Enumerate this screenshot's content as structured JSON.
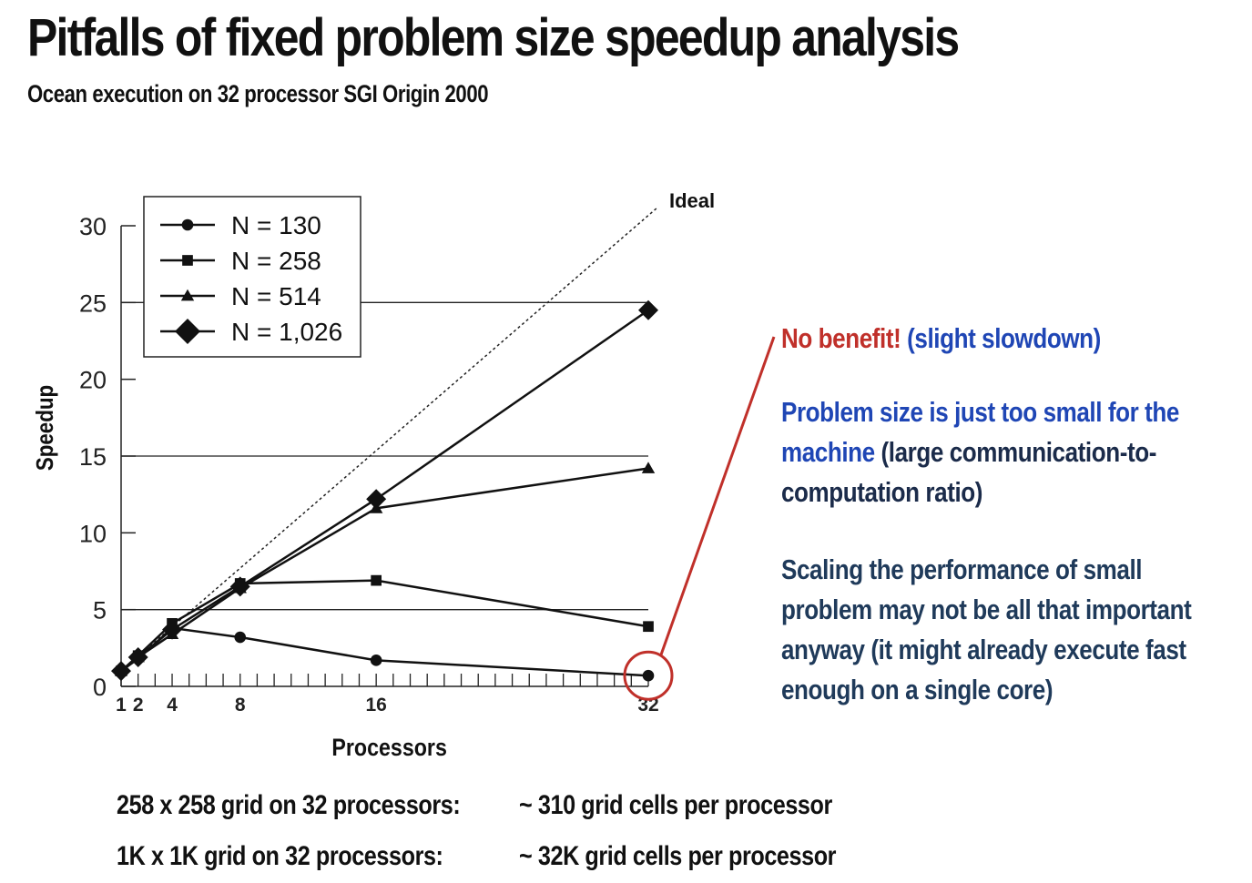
{
  "slide": {
    "title": "Pitfalls of fixed problem size speedup analysis",
    "subtitle": "Ocean execution on 32 processor SGI Origin 2000"
  },
  "chart_data": {
    "type": "line",
    "xlabel": "Processors",
    "ylabel": "Speedup",
    "xlim": [
      1,
      32
    ],
    "ylim": [
      0,
      30
    ],
    "x_ticks": [
      1,
      2,
      4,
      8,
      16,
      32
    ],
    "y_ticks": [
      0,
      5,
      10,
      15,
      20,
      25,
      30
    ],
    "grid": "horizontal at 5, 15, 25",
    "legend_position": "top-left",
    "ideal_label": "Ideal",
    "series": [
      {
        "name": "N = 130",
        "marker": "circle",
        "x": [
          1,
          2,
          4,
          8,
          16,
          32
        ],
        "values": [
          1.0,
          1.8,
          3.8,
          3.2,
          1.7,
          0.7
        ]
      },
      {
        "name": "N = 258",
        "marker": "square",
        "x": [
          1,
          2,
          4,
          8,
          16,
          32
        ],
        "values": [
          1.0,
          2.0,
          4.1,
          6.7,
          6.9,
          3.9
        ]
      },
      {
        "name": "N = 514",
        "marker": "triangle",
        "x": [
          1,
          2,
          4,
          8,
          16,
          32
        ],
        "values": [
          1.0,
          1.9,
          3.4,
          6.4,
          11.6,
          14.2
        ]
      },
      {
        "name": "N = 1,026",
        "marker": "diamond",
        "x": [
          1,
          2,
          4,
          8,
          16,
          32
        ],
        "values": [
          1.0,
          1.9,
          3.7,
          6.5,
          12.2,
          24.5
        ]
      }
    ],
    "highlight_color": "#c0302a"
  },
  "callouts": {
    "c1_red": "No benefit!",
    "c1_blue": "(slight slowdown)",
    "c2_line1": "Problem size is just too small for the",
    "c2_line2_blue": "machine",
    "c2_line2_rest": "(large communication-to-",
    "c2_line3": "computation ratio)",
    "c3_line1": "Scaling the performance of small",
    "c3_line2": "problem may not be all that important",
    "c3_line3": "anyway (it might already execute fast",
    "c3_line4": "enough on a single core)"
  },
  "grid_rows": [
    {
      "label": "258 x 258 grid on 32 processors:",
      "value": "~ 310 grid cells per processor"
    },
    {
      "label": "1K x 1K grid on 32 processors:",
      "value": "~ 32K grid cells per processor"
    }
  ],
  "colors": {
    "red": "#c0302a",
    "blue": "#1f46b5",
    "navy": "#1b2b4a"
  }
}
